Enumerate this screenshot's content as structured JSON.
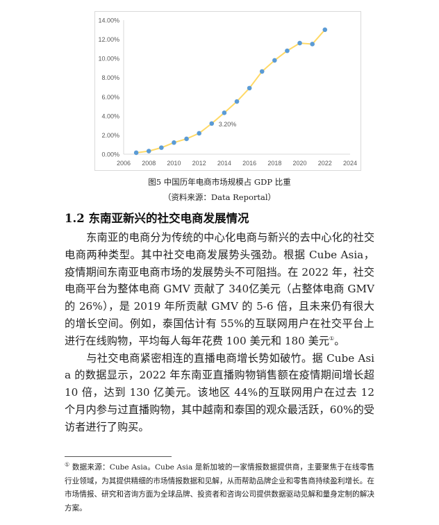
{
  "chart_data": {
    "type": "line",
    "title": "",
    "xlabel": "",
    "ylabel": "",
    "x": [
      2007,
      2008,
      2009,
      2010,
      2011,
      2012,
      2013,
      2014,
      2015,
      2016,
      2017,
      2018,
      2019,
      2020,
      2021,
      2022
    ],
    "values": [
      0.15,
      0.32,
      0.68,
      1.21,
      1.6,
      2.18,
      3.2,
      4.32,
      5.5,
      6.9,
      8.64,
      9.8,
      10.8,
      11.6,
      11.5,
      13.0
    ],
    "xlim": [
      2006,
      2024
    ],
    "ylim": [
      0,
      14
    ],
    "x_ticks": [
      "2006",
      "2008",
      "2010",
      "2012",
      "2014",
      "2016",
      "2018",
      "2020",
      "2022",
      "2024"
    ],
    "y_ticks": [
      "0.00%",
      "2.00%",
      "4.00%",
      "6.00%",
      "8.00%",
      "10.00%",
      "12.00%",
      "14.00%"
    ],
    "annotations": [
      {
        "x": 2013,
        "label": "3.20%"
      }
    ],
    "grid": false,
    "line_color": "#ffd966",
    "marker_color": "#5b9bd5"
  },
  "caption": {
    "figure": "图5  中国历年电商市场规模占 GDP 比重",
    "source": "（资料来源：Data Reportal）"
  },
  "section": {
    "heading": "1.2 东南亚新兴的社交电商发展情况",
    "paragraphs": [
      "东南亚的电商分为传统的中心化电商与新兴的去中心化的社交电商两种类型。其中社交电商发展势头强劲。根据 Cube Asia，疫情期间东南亚电商市场的发展势头不可阻挡。在 2022 年，社交电商平台为整体电商 GMV 贡献了 340亿美元（占整体电商 GMV 的 26%），是 2019 年所贡献 GMV 的 5-6 倍，且未来仍有很大的增长空间。例如，泰国估计有 55%的互联网用户在社交平台上进行在线购物，平均每人每年花费 100 美元和 180 美元",
      "与社交电商紧密相连的直播电商增长势如破竹。据 Cube Asia 的数据显示，2022 年东南亚直播购物销售额在疫情期间增长超 10 倍，达到 130 亿美元。该地区 44%的互联网用户在过去 12 个月内参与过直播购物，其中越南和泰国的观众最活跃，60%的受访者进行了购买。"
    ],
    "footnote_ref": "①",
    "period": "。"
  },
  "footnote": {
    "marker": "①",
    "text": " 数据来源：Cube Asia。Cube Asia 是新加坡的一家情报数据提供商，主要聚焦于在线零售行业领域，为其提供精细的市场情报数据和见解，从而帮助品牌企业和零售商持续盈利增长。在市场情报、研究和咨询方面为全球品牌、投资者和咨询公司提供数据驱动见解和量身定制的解决方案。"
  }
}
